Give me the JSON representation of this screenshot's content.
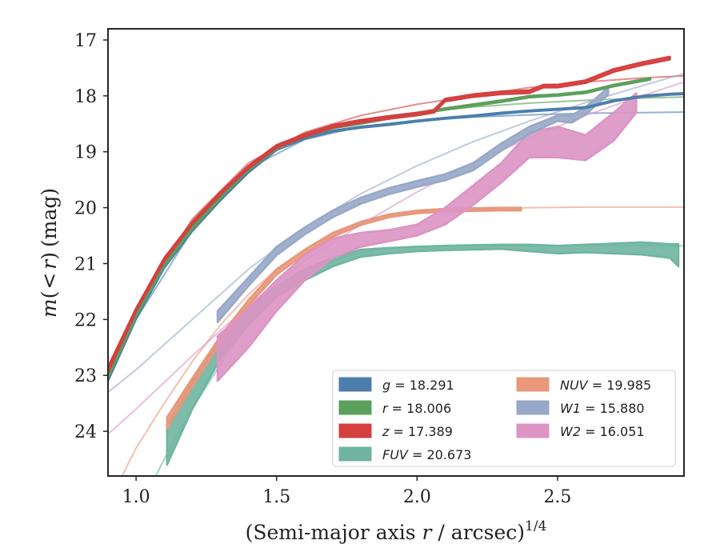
{
  "chart_data": {
    "type": "line",
    "xlabel": "(Semi-major axis r / arcsec)^{1/4}",
    "xlabel_parts": {
      "pre": "(Semi-major axis ",
      "var": "r",
      "post": " / arcsec)",
      "sup": "1/4"
    },
    "ylabel": "m(< r) (mag)",
    "ylabel_parts": {
      "m": "m",
      "open": "(",
      "lt": "<",
      "r": "r",
      "close": ")",
      "unit": "(mag)"
    },
    "xlim": [
      0.9,
      2.95
    ],
    "ylim": [
      24.8,
      16.8
    ],
    "y_inverted": true,
    "xticks": [
      1.0,
      1.5,
      2.0,
      2.5
    ],
    "xtick_labels": [
      "1.0",
      "1.5",
      "2.0",
      "2.5"
    ],
    "yticks": [
      17,
      18,
      19,
      20,
      21,
      22,
      23,
      24
    ],
    "ytick_labels": [
      "17",
      "18",
      "19",
      "20",
      "21",
      "22",
      "23",
      "24"
    ],
    "grid": false,
    "legend_placement": "lower-right",
    "series": [
      {
        "name": "g = 18.291",
        "var": "g",
        "value": "18.291",
        "color": "#4c7eab",
        "key": "g",
        "x": [
          0.9,
          1.0,
          1.1,
          1.2,
          1.3,
          1.4,
          1.5,
          1.6,
          1.7,
          1.8,
          1.9,
          2.0,
          2.1,
          2.2,
          2.3,
          2.4,
          2.5,
          2.6,
          2.7,
          2.8,
          2.9,
          2.95
        ],
        "y": [
          23.05,
          21.95,
          21.05,
          20.4,
          19.85,
          19.35,
          18.95,
          18.75,
          18.62,
          18.55,
          18.5,
          18.44,
          18.39,
          18.35,
          18.3,
          18.26,
          18.23,
          18.2,
          18.08,
          18.0,
          17.96,
          17.95
        ],
        "y_lo": [
          23.1,
          21.99,
          21.08,
          20.42,
          19.87,
          19.37,
          18.97,
          18.77,
          18.64,
          18.57,
          18.52,
          18.46,
          18.41,
          18.37,
          18.32,
          18.28,
          18.25,
          18.22,
          18.1,
          18.02,
          17.98,
          17.97
        ],
        "fit_x": [
          0.9,
          1.0,
          1.2,
          1.4,
          1.6,
          1.8,
          2.0,
          2.2,
          2.4,
          2.6,
          2.8,
          2.95
        ],
        "fit_y": [
          23.0,
          22.0,
          20.4,
          19.3,
          18.78,
          18.55,
          18.44,
          18.38,
          18.34,
          18.31,
          18.3,
          18.29
        ]
      },
      {
        "name": "r = 18.006",
        "var": "r",
        "value": "18.006",
        "color": "#5ba05b",
        "key": "r",
        "x": [
          0.9,
          1.0,
          1.1,
          1.2,
          1.3,
          1.4,
          1.5,
          1.6,
          1.7,
          1.8,
          1.9,
          2.0,
          2.1,
          2.2,
          2.3,
          2.4,
          2.5,
          2.6,
          2.7,
          2.83
        ],
        "y": [
          23.0,
          21.9,
          21.0,
          20.35,
          19.8,
          19.3,
          18.92,
          18.7,
          18.55,
          18.47,
          18.38,
          18.3,
          18.22,
          18.15,
          18.08,
          18.0,
          17.97,
          17.92,
          17.8,
          17.68
        ],
        "y_lo": [
          23.04,
          21.94,
          21.04,
          20.38,
          19.83,
          19.33,
          18.95,
          18.73,
          18.58,
          18.5,
          18.41,
          18.33,
          18.25,
          18.18,
          18.11,
          18.03,
          18.0,
          17.95,
          17.83,
          17.71
        ],
        "fit_x": [
          0.9,
          1.0,
          1.2,
          1.4,
          1.6,
          1.8,
          2.0,
          2.2,
          2.4,
          2.6,
          2.8,
          2.95
        ],
        "fit_y": [
          22.9,
          21.85,
          20.3,
          19.25,
          18.7,
          18.45,
          18.3,
          18.2,
          18.13,
          18.08,
          18.04,
          18.02
        ]
      },
      {
        "name": "z = 17.389",
        "var": "z",
        "value": "17.389",
        "color": "#d43f3f",
        "key": "z",
        "x": [
          0.9,
          1.0,
          1.1,
          1.2,
          1.3,
          1.4,
          1.5,
          1.6,
          1.7,
          1.8,
          1.9,
          2.0,
          2.06,
          2.1,
          2.2,
          2.3,
          2.4,
          2.45,
          2.5,
          2.6,
          2.7,
          2.8,
          2.9
        ],
        "y": [
          22.85,
          21.8,
          20.9,
          20.25,
          19.72,
          19.25,
          18.88,
          18.68,
          18.52,
          18.43,
          18.36,
          18.3,
          18.25,
          18.05,
          17.97,
          17.92,
          17.9,
          17.8,
          17.8,
          17.72,
          17.52,
          17.4,
          17.3
        ],
        "y_lo": [
          22.95,
          21.86,
          20.96,
          20.3,
          19.77,
          19.3,
          18.93,
          18.73,
          18.57,
          18.48,
          18.41,
          18.35,
          18.3,
          18.1,
          18.02,
          17.97,
          17.95,
          17.85,
          17.85,
          17.77,
          17.57,
          17.45,
          17.35
        ],
        "fit_x": [
          0.9,
          1.0,
          1.2,
          1.4,
          1.6,
          1.8,
          2.0,
          2.2,
          2.4,
          2.6,
          2.8,
          2.95
        ],
        "fit_y": [
          22.9,
          21.8,
          20.2,
          19.2,
          18.65,
          18.35,
          18.15,
          18.0,
          17.85,
          17.75,
          17.68,
          17.64
        ]
      },
      {
        "name": "FUV = 20.673",
        "var": "FUV",
        "value": "20.673",
        "color": "#6fb5a0",
        "key": "fuv",
        "x": [
          1.11,
          1.2,
          1.3,
          1.4,
          1.5,
          1.6,
          1.7,
          1.8,
          1.9,
          2.0,
          2.1,
          2.2,
          2.3,
          2.4,
          2.5,
          2.6,
          2.7,
          2.8,
          2.9,
          2.93
        ],
        "y": [
          23.9,
          23.1,
          22.3,
          21.8,
          21.4,
          21.1,
          20.9,
          20.75,
          20.72,
          20.7,
          20.68,
          20.67,
          20.66,
          20.66,
          20.68,
          20.66,
          20.64,
          20.62,
          20.65,
          20.65
        ],
        "y_lo": [
          24.6,
          23.6,
          22.7,
          22.1,
          21.6,
          21.3,
          21.05,
          20.88,
          20.82,
          20.78,
          20.76,
          20.75,
          20.74,
          20.78,
          20.82,
          20.8,
          20.82,
          20.84,
          20.9,
          21.05
        ],
        "fit_x": [
          1.0,
          1.1,
          1.2,
          1.3,
          1.4,
          1.5,
          1.6,
          1.7,
          1.8,
          1.9,
          2.0,
          2.2,
          2.4,
          2.6,
          2.8,
          2.95
        ],
        "fit_y": [
          25.5,
          24.5,
          23.6,
          22.8,
          22.1,
          21.6,
          21.2,
          20.95,
          20.8,
          20.72,
          20.69,
          20.68,
          20.68,
          20.68,
          20.68,
          20.68
        ]
      },
      {
        "name": "NUV = 19.985",
        "var": "NUV",
        "value": "19.985",
        "color": "#e8977b",
        "key": "nuv",
        "x": [
          1.11,
          1.2,
          1.3,
          1.4,
          1.5,
          1.6,
          1.7,
          1.8,
          1.9,
          2.0,
          2.1,
          2.2,
          2.3,
          2.37
        ],
        "y": [
          23.75,
          23.05,
          22.3,
          21.65,
          21.1,
          20.75,
          20.45,
          20.25,
          20.12,
          20.05,
          20.02,
          20.01,
          20.0,
          20.0
        ],
        "y_lo": [
          23.95,
          23.2,
          22.42,
          21.75,
          21.2,
          20.83,
          20.52,
          20.31,
          20.17,
          20.1,
          20.07,
          20.06,
          20.05,
          20.05
        ],
        "fit_x": [
          0.95,
          1.0,
          1.1,
          1.2,
          1.3,
          1.4,
          1.5,
          1.6,
          1.7,
          1.8,
          1.9,
          2.0,
          2.2,
          2.4,
          2.6,
          2.8,
          2.95
        ],
        "fit_y": [
          24.8,
          24.3,
          23.5,
          22.75,
          22.1,
          21.55,
          21.1,
          20.75,
          20.48,
          20.3,
          20.15,
          20.08,
          20.02,
          20.0,
          19.99,
          19.99,
          19.99
        ]
      },
      {
        "name": "W1 = 15.880",
        "var": "W1",
        "value": "15.880",
        "color": "#97a8c8",
        "key": "w1",
        "x": [
          1.29,
          1.4,
          1.5,
          1.6,
          1.7,
          1.8,
          1.9,
          2.0,
          2.1,
          2.2,
          2.3,
          2.4,
          2.5,
          2.55,
          2.6,
          2.68
        ],
        "y": [
          21.85,
          21.25,
          20.7,
          20.35,
          20.05,
          19.82,
          19.65,
          19.52,
          19.4,
          19.2,
          18.85,
          18.55,
          18.35,
          18.35,
          18.2,
          17.85
        ],
        "y_lo": [
          22.05,
          21.4,
          20.85,
          20.48,
          20.17,
          19.93,
          19.76,
          19.63,
          19.51,
          19.33,
          18.98,
          18.68,
          18.45,
          18.48,
          18.33,
          17.98
        ],
        "fit_x": [
          0.9,
          1.0,
          1.2,
          1.4,
          1.6,
          1.8,
          2.0,
          2.2,
          2.4,
          2.6,
          2.8,
          2.95
        ],
        "fit_y": [
          23.3,
          22.9,
          22.0,
          21.1,
          20.35,
          19.75,
          19.25,
          18.82,
          18.45,
          18.12,
          17.82,
          17.6
        ]
      },
      {
        "name": "W2 = 16.051",
        "var": "W2",
        "value": "16.051",
        "color": "#dc94c4",
        "key": "w2",
        "x": [
          1.29,
          1.4,
          1.5,
          1.6,
          1.7,
          1.8,
          1.9,
          2.0,
          2.1,
          2.2,
          2.3,
          2.4,
          2.5,
          2.6,
          2.7,
          2.78
        ],
        "y": [
          22.3,
          21.8,
          21.3,
          20.85,
          20.55,
          20.45,
          20.4,
          20.3,
          20.0,
          19.6,
          19.2,
          18.65,
          18.55,
          18.7,
          18.3,
          17.95
        ],
        "y_lo": [
          23.1,
          22.5,
          21.85,
          21.3,
          20.9,
          20.7,
          20.6,
          20.5,
          20.3,
          19.95,
          19.55,
          19.1,
          19.1,
          19.15,
          18.8,
          18.3
        ],
        "fit_x": [
          0.9,
          1.0,
          1.2,
          1.4,
          1.6,
          1.8,
          2.0,
          2.2,
          2.4,
          2.6,
          2.8,
          2.95
        ],
        "fit_y": [
          24.05,
          23.6,
          22.65,
          21.75,
          20.95,
          20.3,
          19.72,
          19.2,
          18.75,
          18.35,
          18.0,
          17.75
        ]
      }
    ]
  }
}
